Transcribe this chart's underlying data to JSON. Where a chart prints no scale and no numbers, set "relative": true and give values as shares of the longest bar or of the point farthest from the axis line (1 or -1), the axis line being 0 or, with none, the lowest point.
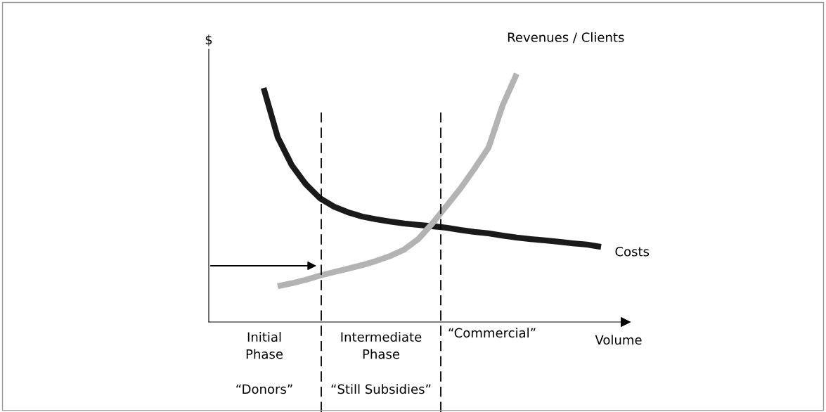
{
  "chart_data": {
    "type": "line",
    "relative": true,
    "xlabel": "Volume",
    "categories": [
      null,
      null,
      null,
      null,
      null,
      null,
      null,
      null,
      null,
      null,
      null,
      null,
      null,
      null,
      null,
      null,
      null,
      null,
      null,
      null,
      null,
      null,
      null,
      null,
      null
    ],
    "series": [
      {
        "name": "Costs",
        "color": "#1a1a1a",
        "values": [
          0.943,
          0.745,
          0.632,
          0.555,
          0.499,
          0.465,
          0.442,
          0.425,
          0.414,
          0.405,
          0.397,
          0.391,
          0.386,
          0.38,
          0.371,
          0.363,
          0.357,
          0.348,
          0.34,
          0.334,
          0.329,
          0.323,
          0.317,
          0.312,
          0.303
        ]
      },
      {
        "name": "Revenues / Clients",
        "color": "#b3b3b3",
        "values": [
          null,
          0.144,
          0.156,
          0.17,
          0.187,
          0.201,
          0.215,
          0.229,
          0.246,
          0.266,
          0.292,
          0.334,
          0.397,
          0.467,
          0.538,
          0.618,
          0.703,
          0.873,
          1.0,
          null,
          null,
          null,
          null,
          null,
          null
        ]
      }
    ],
    "annotations": [
      "$",
      "Initial Phase",
      "Intermediate Phase",
      "“Commercial”",
      "“Donors”",
      "“Still Subsidies”"
    ],
    "grid": false,
    "legend": false,
    "marker": "none",
    "line_style": "solid"
  }
}
